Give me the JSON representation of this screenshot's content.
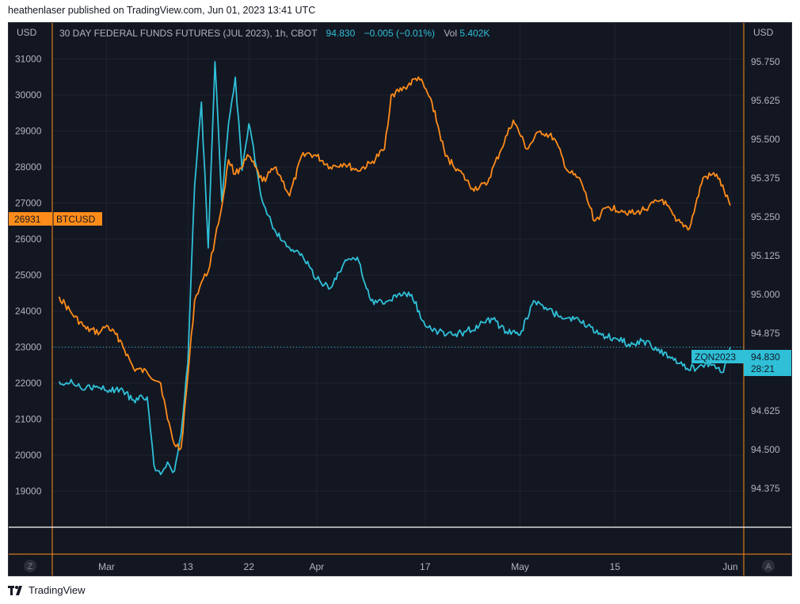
{
  "header": {
    "text": "heathenlaser published on TradingView.com, Jun 01, 2023 13:41 UTC"
  },
  "footer": {
    "brand": "TradingView"
  },
  "colors": {
    "background": "#131722",
    "grid": "#1f2330",
    "btc": "#ff8c1a",
    "zqn": "#2fc0d8",
    "text": "#b2b5be",
    "white_line": "#ffffff"
  },
  "chart_data": {
    "type": "line",
    "legend": {
      "instrument": "30 DAY FEDERAL FUNDS FUTURES (JUL 2023), 1h, CBOT",
      "price": "94.830",
      "change": "−0.005 (−0.01%)",
      "vol_label": "Vol",
      "vol_value": "5.402K"
    },
    "left_axis": {
      "unit": "USD",
      "ticks": [
        "31000",
        "30000",
        "29000",
        "28000",
        "27000",
        "26000",
        "25000",
        "24000",
        "23000",
        "22000",
        "21000",
        "20000",
        "19000"
      ],
      "range": [
        18000,
        32000
      ],
      "scale": "linear"
    },
    "right_axis": {
      "unit": "USD",
      "ticks": [
        "95.750",
        "95.625",
        "95.500",
        "95.375",
        "95.250",
        "95.125",
        "95.000",
        "94.875",
        "94.750",
        "94.625",
        "94.500",
        "94.375"
      ],
      "range": [
        94.25,
        95.875
      ],
      "scale": "linear"
    },
    "x_axis": {
      "ticks": [
        "Mar",
        "13",
        "22",
        "Apr",
        "17",
        "May",
        "15",
        "Jun"
      ],
      "left_button": "Z",
      "right_button": "A"
    },
    "btc_label": {
      "price": "26931",
      "symbol": "BTCUSD"
    },
    "zqn_label": {
      "symbol": "ZQN2023",
      "price": "94.830",
      "countdown": "28:21"
    },
    "grid": true,
    "series": [
      {
        "name": "BTCUSD",
        "axis": "left",
        "x": [
          "Feb 22",
          "Feb 24",
          "Feb 26",
          "Feb 28",
          "Mar 1",
          "Mar 3",
          "Mar 5",
          "Mar 7",
          "Mar 9",
          "Mar 10",
          "Mar 11",
          "Mar 12",
          "Mar 13",
          "Mar 14",
          "Mar 15",
          "Mar 16",
          "Mar 17",
          "Mar 18",
          "Mar 19",
          "Mar 20",
          "Mar 22",
          "Mar 24",
          "Mar 26",
          "Mar 28",
          "Mar 30",
          "Apr 1",
          "Apr 3",
          "Apr 5",
          "Apr 7",
          "Apr 9",
          "Apr 11",
          "Apr 12",
          "Apr 14",
          "Apr 16",
          "Apr 18",
          "Apr 20",
          "Apr 22",
          "Apr 24",
          "Apr 26",
          "Apr 28",
          "Apr 30",
          "May 2",
          "May 4",
          "May 6",
          "May 8",
          "May 10",
          "May 12",
          "May 14",
          "May 16",
          "May 18",
          "May 20",
          "May 22",
          "May 24",
          "May 26",
          "May 28",
          "May 30",
          "Jun 1"
        ],
        "values": [
          24400,
          23900,
          23500,
          23400,
          23600,
          23200,
          22400,
          22300,
          22000,
          21000,
          20300,
          20200,
          22200,
          24300,
          24800,
          25100,
          26000,
          26900,
          28200,
          27800,
          28300,
          27600,
          28000,
          27200,
          28400,
          28300,
          28000,
          28100,
          27900,
          28100,
          28500,
          30000,
          30200,
          30500,
          29800,
          28300,
          27900,
          27400,
          27500,
          28400,
          29300,
          28500,
          29000,
          28800,
          27900,
          27600,
          26500,
          26900,
          26800,
          26700,
          26900,
          27100,
          26500,
          26300,
          27700,
          27800,
          26931
        ]
      },
      {
        "name": "ZQN2023",
        "axis": "right",
        "x": [
          "Feb 22",
          "Feb 24",
          "Feb 26",
          "Feb 28",
          "Mar 1",
          "Mar 3",
          "Mar 5",
          "Mar 7",
          "Mar 8",
          "Mar 9",
          "Mar 10",
          "Mar 11",
          "Mar 12",
          "Mar 13",
          "Mar 14",
          "Mar 15",
          "Mar 16",
          "Mar 17",
          "Mar 18",
          "Mar 19",
          "Mar 20",
          "Mar 21",
          "Mar 22",
          "Mar 24",
          "Mar 26",
          "Mar 28",
          "Mar 30",
          "Apr 1",
          "Apr 3",
          "Apr 5",
          "Apr 7",
          "Apr 9",
          "Apr 11",
          "Apr 13",
          "Apr 15",
          "Apr 17",
          "Apr 19",
          "Apr 21",
          "Apr 23",
          "Apr 25",
          "Apr 27",
          "Apr 29",
          "May 1",
          "May 3",
          "May 5",
          "May 7",
          "May 9",
          "May 11",
          "May 13",
          "May 15",
          "May 17",
          "May 19",
          "May 21",
          "May 23",
          "May 25",
          "May 27",
          "May 29",
          "May 31",
          "Jun 1"
        ],
        "values": [
          94.72,
          94.715,
          94.7,
          94.7,
          94.69,
          94.695,
          94.66,
          94.67,
          94.45,
          94.42,
          94.46,
          94.43,
          94.55,
          94.78,
          95.35,
          95.62,
          95.15,
          95.75,
          95.3,
          95.55,
          95.7,
          95.4,
          95.55,
          95.3,
          95.2,
          95.15,
          95.12,
          95.05,
          95.02,
          95.1,
          95.12,
          94.98,
          94.97,
          95.0,
          95.0,
          94.9,
          94.88,
          94.87,
          94.88,
          94.9,
          94.92,
          94.88,
          94.87,
          94.98,
          94.95,
          94.93,
          94.92,
          94.9,
          94.87,
          94.86,
          94.84,
          94.85,
          94.83,
          94.8,
          94.77,
          94.76,
          94.78,
          94.75,
          94.83
        ]
      }
    ]
  }
}
